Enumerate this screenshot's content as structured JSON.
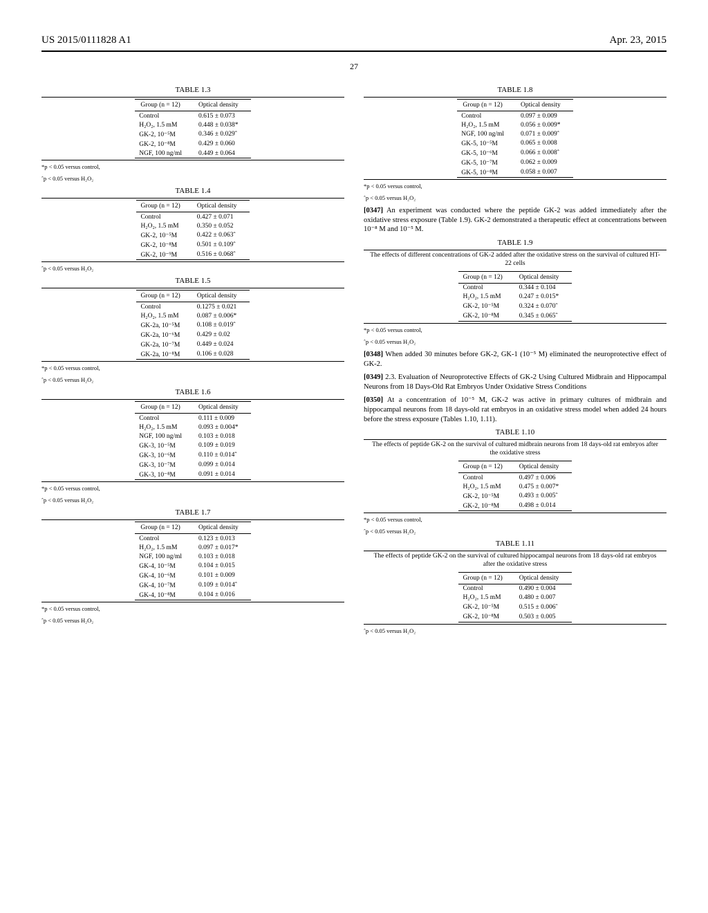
{
  "header": {
    "pub_number": "US 2015/0111828 A1",
    "pub_date": "Apr. 23, 2015",
    "page_number": "27"
  },
  "tables": {
    "t1_3": {
      "title": "TABLE 1.3",
      "col_group": "Group (n = 12)",
      "col_val": "Optical density",
      "rows": [
        [
          "Control",
          "0.615 ± 0.073"
        ],
        [
          "H₂O₂, 1.5 mM",
          "0.448 ± 0.038*"
        ],
        [
          "GK-2, 10⁻⁵M",
          "0.346 ± 0.029ˆ"
        ],
        [
          "GK-2, 10⁻⁸M",
          "0.429 ± 0.060"
        ],
        [
          "NGF, 100 ng/ml",
          "0.449 ± 0.064"
        ]
      ]
    },
    "t1_4": {
      "title": "TABLE 1.4",
      "col_group": "Group (n = 12)",
      "col_val": "Optical density",
      "rows": [
        [
          "Control",
          "0.427 ± 0.071"
        ],
        [
          "H₂O₂, 1.5 mM",
          "0.350 ± 0.052"
        ],
        [
          "GK-2, 10⁻⁵M",
          "0.422 ± 0.063ˆ"
        ],
        [
          "GK-2, 10⁻⁸M",
          "0.501 ± 0.109ˆ"
        ],
        [
          "GK-2, 10⁻⁹M",
          "0.516 ± 0.068ˆ"
        ]
      ]
    },
    "t1_5": {
      "title": "TABLE 1.5",
      "col_group": "Group (n = 12)",
      "col_val": "Optical density",
      "rows": [
        [
          "Control",
          "0.1275 ± 0.021"
        ],
        [
          "H₂O₂, 1.5 mM",
          "0.087 ± 0.006*"
        ],
        [
          "GK-2a, 10⁻⁵M",
          "0.108 ± 0.019ˆ"
        ],
        [
          "GK-2a, 10⁻⁶M",
          "0.429 ± 0.02"
        ],
        [
          "GK-2a, 10⁻⁷M",
          "0.449 ± 0.024"
        ],
        [
          "GK-2a, 10⁻⁸M",
          "0.106 ± 0.028"
        ]
      ]
    },
    "t1_6": {
      "title": "TABLE 1.6",
      "col_group": "Group (n = 12)",
      "col_val": "Optical density",
      "rows": [
        [
          "Control",
          "0.111 ± 0.009"
        ],
        [
          "H₂O₂, 1.5 mM",
          "0.093 ± 0.004*"
        ],
        [
          "NGF, 100 ng/ml",
          "0.103 ± 0.018"
        ],
        [
          "GK-3, 10⁻⁵M",
          "0.109 ± 0.019"
        ],
        [
          "GK-3, 10⁻⁶M",
          "0.110 ± 0.014ˆ"
        ],
        [
          "GK-3, 10⁻⁷M",
          "0.099 ± 0.014"
        ],
        [
          "GK-3, 10⁻⁸M",
          "0.091 ± 0.014"
        ]
      ]
    },
    "t1_7": {
      "title": "TABLE 1.7",
      "col_group": "Group (n = 12)",
      "col_val": "Optical density",
      "rows": [
        [
          "Control",
          "0.123 ± 0.013"
        ],
        [
          "H₂O₂, 1.5 mM",
          "0.097 ± 0.017*"
        ],
        [
          "NGF, 100 ng/ml",
          "0.103 ± 0.018"
        ],
        [
          "GK-4, 10⁻⁵M",
          "0.104 ± 0.015"
        ],
        [
          "GK-4, 10⁻⁶M",
          "0.101 ± 0.009"
        ],
        [
          "GK-4, 10⁻⁷M",
          "0.109 ± 0.014ˆ"
        ],
        [
          "GK-4, 10⁻⁸M",
          "0.104 ± 0.016"
        ]
      ]
    },
    "t1_8": {
      "title": "TABLE 1.8",
      "col_group": "Group (n = 12)",
      "col_val": "Optical density",
      "rows": [
        [
          "Control",
          "0.097 ± 0.009"
        ],
        [
          "H₂O₂, 1.5 mM",
          "0.056 ± 0.009*"
        ],
        [
          "NGF, 100 ng/ml",
          "0.071 ± 0.009ˆ"
        ],
        [
          "GK-5, 10⁻⁵M",
          "0.065 ± 0.008"
        ],
        [
          "GK-5, 10⁻⁶M",
          "0.066 ± 0.008ˆ"
        ],
        [
          "GK-5, 10⁻⁷M",
          "0.062 ± 0.009"
        ],
        [
          "GK-5, 10⁻⁸M",
          "0.058 ± 0.007"
        ]
      ]
    },
    "t1_9": {
      "title": "TABLE 1.9",
      "caption": "The effects of different concentrations of GK-2 added after the oxidative stress on the survival of cultured HT-22 cells",
      "col_group": "Group (n = 12)",
      "col_val": "Optical density",
      "rows": [
        [
          "Control",
          "0.344 ± 0.104"
        ],
        [
          "H₂O₂, 1.5 mM",
          "0.247 ± 0.015*"
        ],
        [
          "GK-2, 10⁻⁵M",
          "0.324 ± 0.070ˆ"
        ],
        [
          "GK-2, 10⁻⁸M",
          "0.345 ± 0.065ˆ"
        ]
      ]
    },
    "t1_10": {
      "title": "TABLE 1.10",
      "caption": "The effects of peptide GK-2 on the survival of cultured midbrain neurons from 18 days-old rat embryos after the oxidative stress",
      "col_group": "Group (n = 12)",
      "col_val": "Optical density",
      "rows": [
        [
          "Control",
          "0.497 ± 0.006"
        ],
        [
          "H₂O₂, 1.5 mM",
          "0.475 ± 0.007*"
        ],
        [
          "GK-2, 10⁻⁵M",
          "0.493 ± 0.005ˆ"
        ],
        [
          "GK-2, 10⁻⁸M",
          "0.498 ± 0.014"
        ]
      ]
    },
    "t1_11": {
      "title": "TABLE 1.11",
      "caption": "The effects of peptide GK-2 on the survival of cultured hippocampal neurons from 18 days-old rat embryos after the oxidative stress",
      "col_group": "Group (n = 12)",
      "col_val": "Optical density",
      "rows": [
        [
          "Control",
          "0.490 ± 0.004"
        ],
        [
          "H₂O₂, 1.5 mM",
          "0.480 ± 0.007"
        ],
        [
          "GK-2, 10⁻⁵M",
          "0.515 ± 0.006ˆ"
        ],
        [
          "GK-2, 10⁻⁸M",
          "0.503 ± 0.005"
        ]
      ]
    }
  },
  "footnotes": {
    "star": "*p < 0.05 versus control,",
    "hat": "ˆp < 0.05 versus H₂O₂"
  },
  "paragraphs": {
    "p0347_lead": "[0347]",
    "p0347": "An experiment was conducted where the peptide GK-2 was added immediately after the oxidative stress exposure (Table 1.9). GK-2 demonstrated a therapeutic effect at concentrations between 10⁻⁸ M and 10⁻⁵ M.",
    "p0348_lead": "[0348]",
    "p0348": "When added 30 minutes before GK-2, GK-1 (10⁻⁵ M) eliminated the neuroprotective effect of GK-2.",
    "p0349_lead": "[0349]",
    "p0349": "2.3. Evaluation of Neuroprotective Effects of GK-2 Using Cultured Midbrain and Hippocampal Neurons from 18 Days-Old Rat Embryos Under Oxidative Stress Conditions",
    "p0350_lead": "[0350]",
    "p0350": "At a concentration of 10⁻⁵ M, GK-2 was active in primary cultures of midbrain and hippocampal neurons from 18 days-old rat embryos in an oxidative stress model when added 24 hours before the stress exposure (Tables 1.10, 1.11)."
  }
}
